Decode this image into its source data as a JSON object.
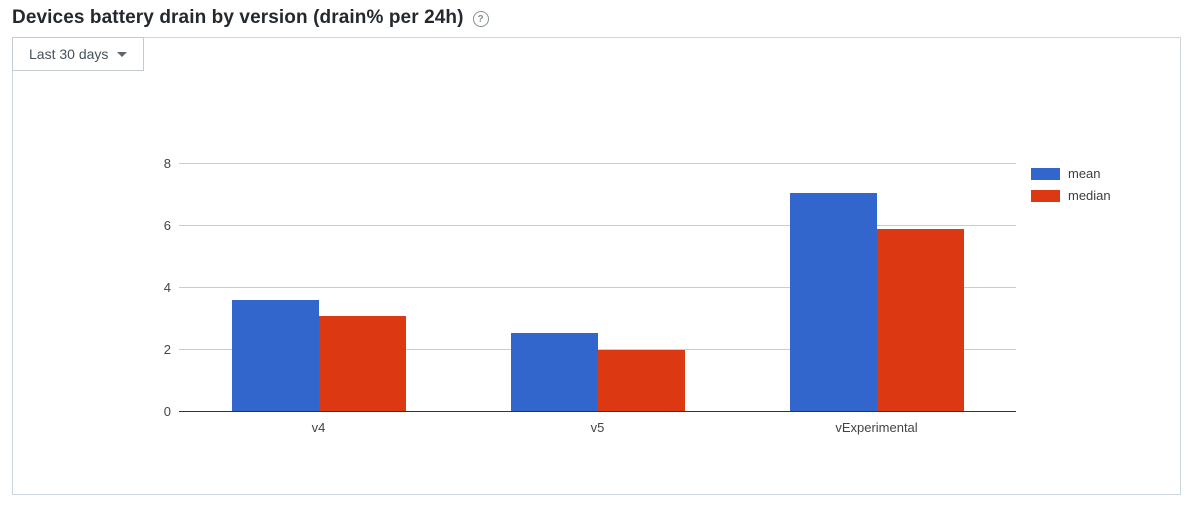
{
  "page": {
    "title": "Devices battery drain by version (drain% per 24h)",
    "help_glyph": "?"
  },
  "controls": {
    "date_range_label": "Last 30 days"
  },
  "chart_data": {
    "type": "bar",
    "title": "Devices battery drain by version (drain% per 24h)",
    "categories": [
      "v4",
      "v5",
      "vExperimental"
    ],
    "series": [
      {
        "name": "mean",
        "color": "#3366cc",
        "values": [
          3.6,
          2.55,
          7.05
        ]
      },
      {
        "name": "median",
        "color": "#dc3912",
        "values": [
          3.1,
          2.0,
          5.9
        ]
      }
    ],
    "xlabel": "",
    "ylabel": "",
    "ylim": [
      0,
      8
    ],
    "yticks": [
      0,
      2,
      4,
      6,
      8
    ],
    "grid": true,
    "legend_position": "right",
    "legend": [
      "mean",
      "median"
    ]
  }
}
